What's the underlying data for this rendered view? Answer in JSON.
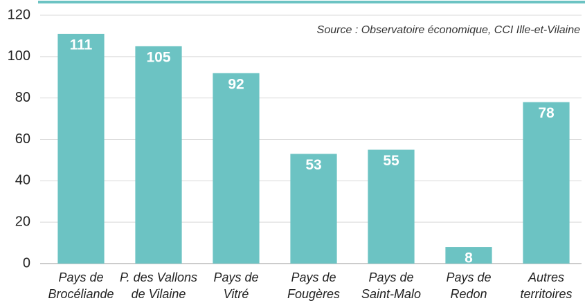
{
  "chart_data": {
    "type": "bar",
    "annotation": "Source : Observatoire économique, CCI Ille-et-Vilaine",
    "categories": [
      [
        "Pays de",
        "Brocéliande"
      ],
      [
        "P. des Vallons",
        "de Vilaine"
      ],
      [
        "Pays de",
        "Vitré"
      ],
      [
        "Pays de",
        "Fougères"
      ],
      [
        "Pays de",
        "Saint-Malo"
      ],
      [
        "Pays de",
        "Redon"
      ],
      [
        "Autres",
        "territoires"
      ]
    ],
    "values": [
      111,
      105,
      92,
      53,
      55,
      8,
      78
    ],
    "color": "#6cc3c3",
    "ylim": [
      0,
      120
    ],
    "yticks": [
      0,
      20,
      40,
      60,
      80,
      100,
      120
    ],
    "grid": true
  }
}
